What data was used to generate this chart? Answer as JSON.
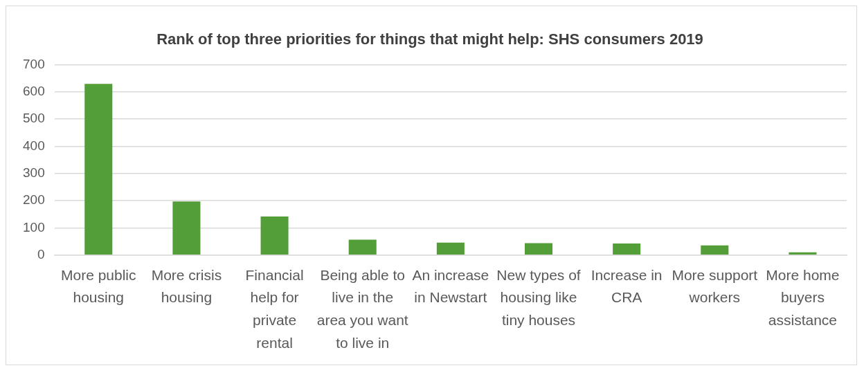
{
  "chart_data": {
    "type": "bar",
    "title": "Rank of top three priorities for things that might help: SHS consumers 2019",
    "categories": [
      "More public housing",
      "More crisis housing",
      "Financial help for private rental",
      "Being able to live in the area you want to live in",
      "An increase in Newstart",
      "New types of housing like tiny houses",
      "Increase in CRA",
      "More support workers",
      "More home buyers assistance"
    ],
    "values": [
      629,
      197,
      142,
      57,
      46,
      44,
      43,
      36,
      10
    ],
    "color": "#549e39",
    "ylim": [
      0,
      700
    ],
    "yticks": [
      0,
      100,
      200,
      300,
      400,
      500,
      600,
      700
    ],
    "grid": "y",
    "legend": false
  }
}
